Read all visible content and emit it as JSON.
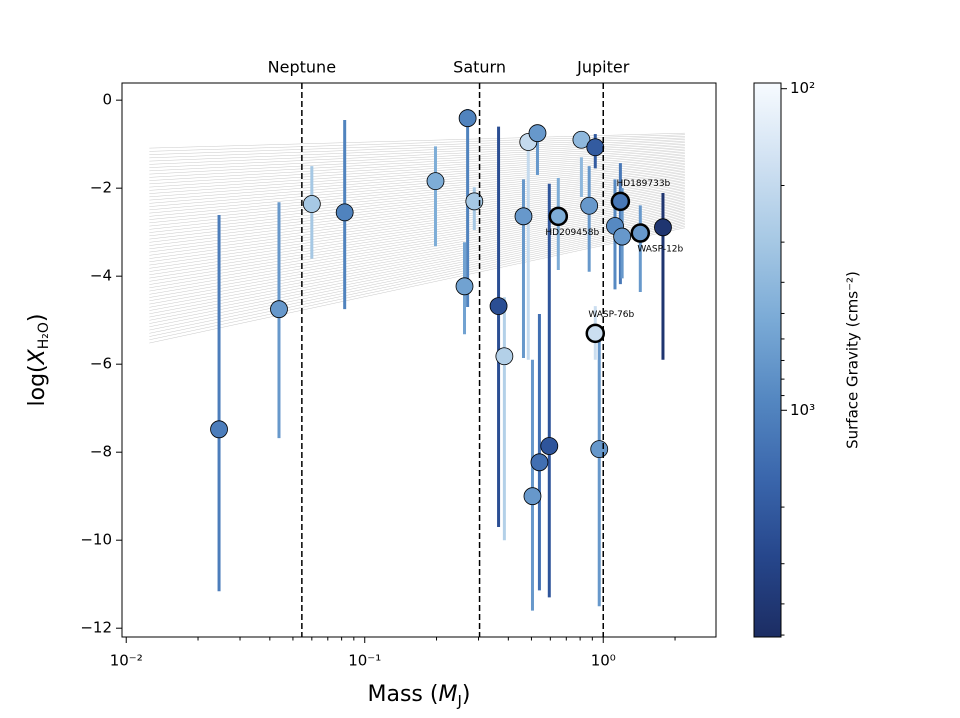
{
  "chart_data": {
    "type": "scatter",
    "x_label_parts": [
      "Mass (",
      "M",
      "J",
      ")"
    ],
    "y_label_parts": [
      "log(",
      "X",
      "H₂O",
      ")"
    ],
    "colorbar_label": "Surface Gravity (cms⁻²)",
    "x_log": true,
    "xlim": [
      0.0096,
      2.97
    ],
    "xticks": [
      {
        "value": 0.01,
        "label": "10⁻²"
      },
      {
        "value": 0.1,
        "label": "10⁻¹"
      },
      {
        "value": 1,
        "label": "10⁰"
      }
    ],
    "ylim": [
      -12.2,
      0.39
    ],
    "yticks": [
      {
        "value": -12,
        "label": "−12"
      },
      {
        "value": -10,
        "label": "−10"
      },
      {
        "value": -8,
        "label": "−8"
      },
      {
        "value": -6,
        "label": "−6"
      },
      {
        "value": -4,
        "label": "−4"
      },
      {
        "value": -2,
        "label": "−2"
      },
      0
    ],
    "clim": [
      96,
      5070
    ],
    "cticks": [
      {
        "value": 100,
        "label": "10²"
      },
      {
        "value": 1000,
        "label": "10³"
      }
    ],
    "colormap": [
      "#f7fbff",
      "#d0e1f2",
      "#a6c8e4",
      "#7aaad6",
      "#5487c1",
      "#3a66ac",
      "#26468b",
      "#1c2d63"
    ],
    "reference_lines": [
      {
        "label": "Neptune",
        "x": 0.0545
      },
      {
        "label": "Saturn",
        "x": 0.303
      },
      {
        "label": "Jupiter",
        "x": 1.0
      }
    ],
    "model_grid": {
      "x": [
        0.0125,
        2.2
      ],
      "upper": [
        -1.09,
        -0.75
      ],
      "lower": [
        -5.52,
        -2.9
      ]
    },
    "x": [
      0.0245,
      0.0437,
      0.06,
      0.0824,
      0.198,
      0.27,
      0.288,
      0.262,
      0.364,
      0.385,
      0.463,
      0.485,
      0.53,
      0.505,
      0.54,
      0.594,
      0.648,
      0.81,
      0.873,
      0.926,
      0.926,
      0.962,
      1.18,
      1.12,
      1.2,
      1.43,
      1.78
    ],
    "values": [
      -7.48,
      -4.75,
      -2.36,
      -2.55,
      -1.84,
      -0.41,
      -2.3,
      -4.23,
      -4.68,
      -5.82,
      -2.64,
      -0.95,
      -0.75,
      -9.0,
      -8.23,
      -7.86,
      -2.64,
      -0.9,
      -2.4,
      -1.07,
      -5.3,
      -7.93,
      -2.3,
      -2.86,
      -3.1,
      -3.02,
      -2.89
    ],
    "y_low": [
      -11.16,
      -7.68,
      -3.6,
      -4.75,
      -3.32,
      -4.7,
      -2.95,
      -5.32,
      -9.7,
      -10.0,
      -5.86,
      -5.9,
      -1.7,
      -11.6,
      -11.14,
      -11.3,
      -3.86,
      -2.2,
      -3.9,
      -1.55,
      -5.9,
      -11.5,
      -4.18,
      -4.3,
      -4.05,
      -4.36,
      -5.9
    ],
    "y_high": [
      -2.61,
      -2.32,
      -1.5,
      -0.45,
      -1.05,
      -0.2,
      -1.98,
      -3.23,
      -0.6,
      -4.48,
      -1.8,
      -0.8,
      -0.55,
      -5.9,
      -4.86,
      -1.9,
      -1.77,
      -1.3,
      -1.5,
      -0.77,
      -4.68,
      -5.36,
      -1.43,
      -1.8,
      -2.0,
      -2.39,
      -2.11
    ],
    "gravity": [
      1100,
      700,
      300,
      1000,
      500,
      1000,
      300,
      600,
      2500,
      250,
      700,
      200,
      700,
      700,
      1400,
      2200,
      500,
      400,
      700,
      2000,
      180,
      700,
      1200,
      900,
      700,
      700,
      4200
    ],
    "labels": [
      null,
      null,
      null,
      null,
      null,
      null,
      null,
      null,
      null,
      null,
      null,
      null,
      null,
      null,
      null,
      null,
      "HD209458b",
      null,
      null,
      null,
      "WASP-76b",
      null,
      "HD189733b",
      null,
      null,
      "WASP-12b",
      null
    ]
  }
}
